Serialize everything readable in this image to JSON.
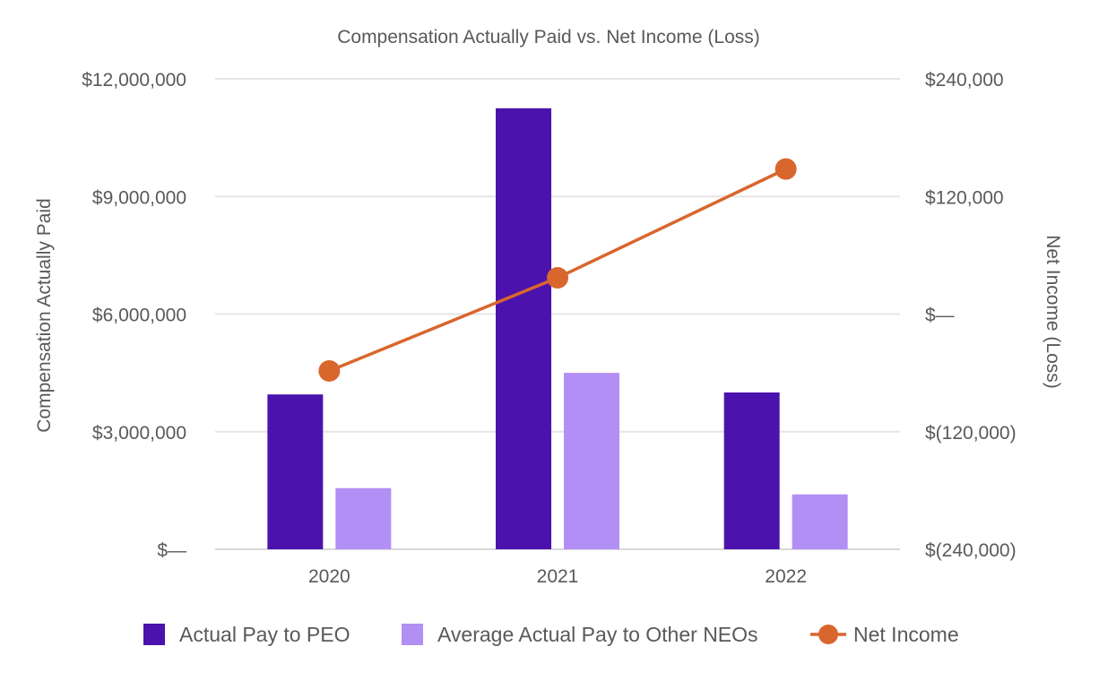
{
  "chart_data": {
    "type": "bar",
    "title": "Compensation Actually Paid vs. Net Income (Loss)",
    "categories": [
      "2020",
      "2021",
      "2022"
    ],
    "ylabel": "Compensation Actually Paid",
    "y2label": "Net Income (Loss)",
    "ylim": [
      0,
      12000000
    ],
    "y2lim": [
      -240000,
      240000
    ],
    "yticks": [
      "$—",
      "$3,000,000",
      "$6,000,000",
      "$9,000,000",
      "$12,000,000"
    ],
    "y2ticks": [
      "$(240,000)",
      "$(120,000)",
      "$—",
      "$120,000",
      "$240,000"
    ],
    "grid": true,
    "legend_position": "bottom",
    "series": [
      {
        "name": "Actual Pay to PEO",
        "type": "bar",
        "axis": "left",
        "color": "#4c12ad",
        "values": [
          3950000,
          11250000,
          4000000
        ]
      },
      {
        "name": "Average Actual Pay to Other NEOs",
        "type": "bar",
        "axis": "left",
        "color": "#b28ff4",
        "values": [
          1560000,
          4500000,
          1400000
        ]
      },
      {
        "name": "Net Income",
        "type": "line",
        "axis": "right",
        "color": "#d9662d",
        "values": [
          -58000,
          37000,
          148000
        ]
      }
    ]
  }
}
